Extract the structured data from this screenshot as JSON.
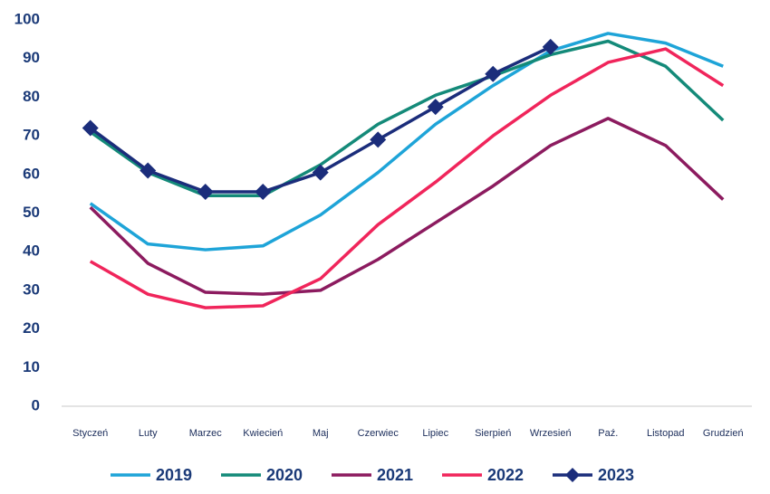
{
  "chart_data": {
    "type": "line",
    "categories": [
      "Styczeń",
      "Luty",
      "Marzec",
      "Kwiecień",
      "Maj",
      "Czerwiec",
      "Lipiec",
      "Sierpień",
      "Wrzesień",
      "Paź.",
      "Listopad",
      "Grudzień"
    ],
    "series": [
      {
        "name": "2019",
        "color": "#1ea4d8",
        "values": [
          52.5,
          42,
          40.5,
          41.5,
          49.5,
          60.5,
          73,
          83,
          92,
          96.5,
          94,
          88
        ]
      },
      {
        "name": "2020",
        "color": "#148a79",
        "values": [
          71,
          60.5,
          54.5,
          54.5,
          62.5,
          73,
          80.5,
          85.5,
          91,
          94.5,
          88,
          74
        ]
      },
      {
        "name": "2021",
        "color": "#8c1b5f",
        "values": [
          51.5,
          37,
          29.5,
          29,
          30,
          38,
          47.5,
          57,
          67.5,
          74.5,
          67.5,
          53.5
        ]
      },
      {
        "name": "2022",
        "color": "#f0255b",
        "values": [
          37.5,
          29,
          25.5,
          26,
          33,
          47,
          58,
          70,
          80.5,
          89,
          92.5,
          83
        ]
      },
      {
        "name": "2023",
        "color": "#1b2d7b",
        "marker": "diamond",
        "values": [
          72,
          61,
          55.5,
          55.5,
          60.5,
          69,
          77.5,
          86,
          93,
          null,
          null,
          null
        ]
      }
    ],
    "ylim": [
      0,
      100
    ],
    "yticks": [
      0,
      10,
      20,
      30,
      40,
      50,
      60,
      70,
      80,
      90,
      100
    ],
    "grid": false,
    "legend": "bottom"
  }
}
